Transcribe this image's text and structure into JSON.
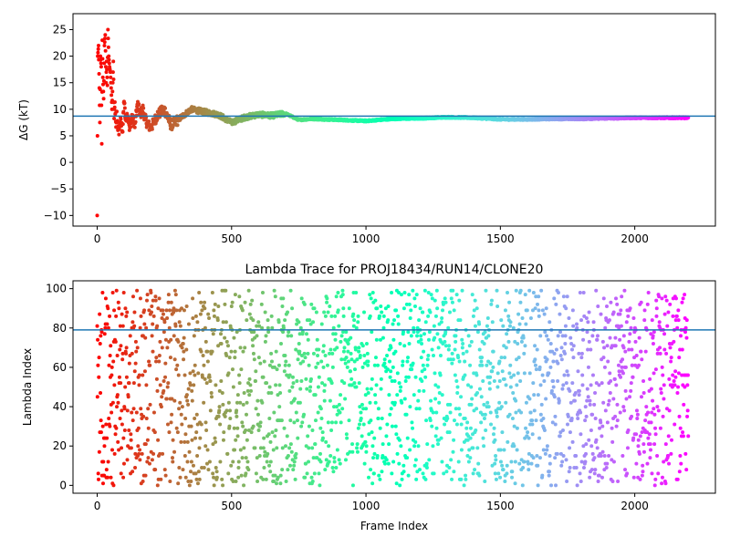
{
  "chart_data": [
    {
      "type": "scatter",
      "title": "",
      "xlabel": "",
      "ylabel": "ΔG (kT)",
      "xlim": [
        -90,
        2300
      ],
      "ylim": [
        -12,
        28
      ],
      "xticks": [
        0,
        500,
        1000,
        1500,
        2000
      ],
      "yticks": [
        -10,
        -5,
        0,
        5,
        10,
        15,
        20,
        25
      ],
      "hline": 8.7,
      "hline_color": "#1f77b4",
      "colormap": "rainbow",
      "frame_count": 2200,
      "grid": false,
      "legend": "none",
      "points": [
        [
          0,
          -10
        ],
        [
          2,
          20
        ],
        [
          5,
          22
        ],
        [
          8,
          14
        ],
        [
          10,
          7.5
        ],
        [
          12,
          20
        ],
        [
          15,
          18
        ],
        [
          17,
          3.5
        ],
        [
          19,
          23
        ],
        [
          21,
          16
        ],
        [
          24,
          12
        ],
        [
          27,
          22
        ],
        [
          30,
          24
        ],
        [
          33,
          15
        ],
        [
          35,
          19
        ],
        [
          38,
          14.5
        ],
        [
          40,
          25
        ],
        [
          43,
          20
        ],
        [
          46,
          18
        ],
        [
          49,
          17
        ],
        [
          52,
          14
        ],
        [
          55,
          10
        ],
        [
          58,
          15
        ],
        [
          60,
          19
        ],
        [
          63,
          8
        ],
        [
          66,
          11
        ],
        [
          70,
          6
        ],
        [
          73,
          9
        ],
        [
          76,
          7
        ],
        [
          80,
          5.5
        ],
        [
          85,
          8
        ],
        [
          90,
          7
        ],
        [
          95,
          6
        ],
        [
          100,
          12
        ],
        [
          105,
          8
        ],
        [
          110,
          9
        ],
        [
          120,
          7
        ],
        [
          130,
          8.5
        ],
        [
          140,
          7
        ],
        [
          150,
          11
        ],
        [
          160,
          9
        ],
        [
          170,
          10
        ],
        [
          180,
          8
        ],
        [
          190,
          7
        ],
        [
          200,
          6.5
        ],
        [
          225,
          9
        ],
        [
          250,
          10
        ],
        [
          275,
          7
        ],
        [
          300,
          8
        ],
        [
          325,
          9
        ],
        [
          350,
          10
        ],
        [
          400,
          9.5
        ],
        [
          450,
          9
        ],
        [
          500,
          7.5
        ],
        [
          550,
          8.5
        ],
        [
          600,
          9
        ],
        [
          650,
          8.8
        ],
        [
          700,
          9.2
        ],
        [
          750,
          8
        ],
        [
          800,
          8.2
        ],
        [
          900,
          8
        ],
        [
          1000,
          7.8
        ],
        [
          1100,
          8.2
        ],
        [
          1200,
          8.3
        ],
        [
          1300,
          8.5
        ],
        [
          1400,
          8.4
        ],
        [
          1500,
          8.1
        ],
        [
          1600,
          8.1
        ],
        [
          1700,
          8.2
        ],
        [
          1800,
          8.2
        ],
        [
          1900,
          8.3
        ],
        [
          2000,
          8.4
        ],
        [
          2100,
          8.4
        ],
        [
          2200,
          8.4
        ]
      ]
    },
    {
      "type": "scatter",
      "title": "Lambda Trace for PROJ18434/RUN14/CLONE20",
      "xlabel": "Frame Index",
      "ylabel": "Lambda Index",
      "xlim": [
        -90,
        2300
      ],
      "ylim": [
        -4,
        104
      ],
      "xticks": [
        0,
        500,
        1000,
        1500,
        2000
      ],
      "yticks": [
        0,
        20,
        40,
        60,
        80,
        100
      ],
      "hline": 79,
      "hline_color": "#1f77b4",
      "colormap": "rainbow",
      "frame_count": 2200,
      "value_range": [
        0,
        99
      ],
      "grid": false,
      "legend": "none"
    }
  ]
}
